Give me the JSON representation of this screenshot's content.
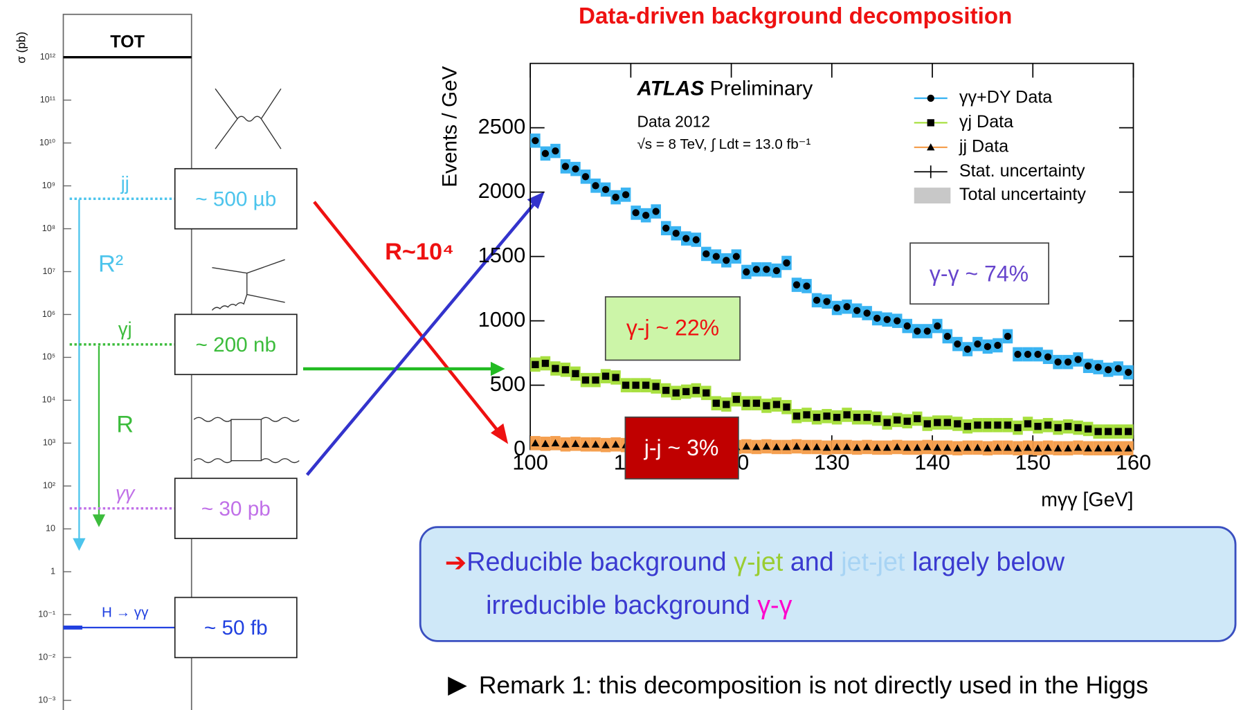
{
  "slide": {
    "title": "Data-driven background decomposition",
    "ratio_label": "R~10⁴",
    "callout": {
      "arrow": "➔",
      "line1": [
        {
          "text": "Reducible background ",
          "color": "#3a3ad0"
        },
        {
          "text": "γ-jet",
          "color": "#9acd32"
        },
        {
          "text": " and ",
          "color": "#3a3ad0"
        },
        {
          "text": "jet-jet",
          "color": "#a8d4f4"
        },
        {
          "text": " largely below",
          "color": "#3a3ad0"
        }
      ],
      "line2": [
        {
          "text": "irreducible background ",
          "color": "#3a3ad0"
        },
        {
          "text": "γ-γ",
          "color": "#ff00cc"
        }
      ]
    },
    "remark": "Remark 1: this decomposition is not directly used in the Higgs"
  },
  "chart_data": [
    {
      "type": "levels",
      "ylabel": "σ (pb)",
      "log_y": true,
      "ylim": [
        0.0006,
        10000000000000
      ],
      "yticks": [
        {
          "value": 1000000000000,
          "label": "10¹²"
        },
        {
          "value": 100000000000,
          "label": "10¹¹"
        },
        {
          "value": 10000000000,
          "label": "10¹⁰"
        },
        {
          "value": 1000000000,
          "label": "10⁹"
        },
        {
          "value": 100000000,
          "label": "10⁸"
        },
        {
          "value": 10000000,
          "label": "10⁷"
        },
        {
          "value": 1000000,
          "label": "10⁶"
        },
        {
          "value": 100000,
          "label": "10⁵"
        },
        {
          "value": 10000,
          "label": "10⁴"
        },
        {
          "value": 1000,
          "label": "10³"
        },
        {
          "value": 100,
          "label": "10²"
        },
        10,
        1,
        {
          "value": 0.1,
          "label": "10⁻¹"
        },
        {
          "value": 0.01,
          "label": "10⁻²"
        },
        {
          "value": 0.001,
          "label": "10⁻³"
        }
      ],
      "series": [
        {
          "name": "TOT",
          "color": "#000000",
          "values": [
            1000000000000
          ]
        },
        {
          "name": "jj",
          "color": "#4cc4ec",
          "values": [
            500000000
          ],
          "value_labels": [
            "~ 500 µb"
          ]
        },
        {
          "name": "γj",
          "color": "#3cbc3c",
          "values": [
            200000
          ],
          "value_labels": [
            "~ 200 nb"
          ]
        },
        {
          "name": "γγ",
          "color": "#c070e8",
          "values": [
            30
          ],
          "value_labels": [
            "~ 30 pb"
          ]
        },
        {
          "name": "H → γγ",
          "color": "#2040e0",
          "values": [
            0.05
          ],
          "value_labels": [
            "~ 50 fb"
          ]
        }
      ],
      "annotations": [
        "R²",
        "R"
      ]
    },
    {
      "type": "scatter",
      "xlabel": "mγγ [GeV]",
      "ylabel": "Events / GeV",
      "xlim": [
        100,
        160
      ],
      "xticks": [
        100,
        110,
        120,
        130,
        140,
        150,
        160
      ],
      "ylim": [
        0,
        3000
      ],
      "yticks": [
        0,
        500,
        1000,
        1500,
        2000,
        2500
      ],
      "x": [
        100.5,
        101.5,
        102.5,
        103.5,
        104.5,
        105.5,
        106.5,
        107.5,
        108.5,
        109.5,
        110.5,
        111.5,
        112.5,
        113.5,
        114.5,
        115.5,
        116.5,
        117.5,
        118.5,
        119.5,
        120.5,
        121.5,
        122.5,
        123.5,
        124.5,
        125.5,
        126.5,
        127.5,
        128.5,
        129.5,
        130.5,
        131.5,
        132.5,
        133.5,
        134.5,
        135.5,
        136.5,
        137.5,
        138.5,
        139.5,
        140.5,
        141.5,
        142.5,
        143.5,
        144.5,
        145.5,
        146.5,
        147.5,
        148.5,
        149.5,
        150.5,
        151.5,
        152.5,
        153.5,
        154.5,
        155.5,
        156.5,
        157.5,
        158.5,
        159.5
      ],
      "series": [
        {
          "name": "γγ+DY Data",
          "color": "#000000",
          "band_color": "#3ab4f2",
          "marker": "circle",
          "values": [
            2400,
            2300,
            2320,
            2200,
            2180,
            2120,
            2050,
            2020,
            1960,
            1980,
            1840,
            1820,
            1850,
            1720,
            1680,
            1640,
            1630,
            1520,
            1500,
            1470,
            1500,
            1380,
            1400,
            1400,
            1390,
            1450,
            1280,
            1270,
            1160,
            1150,
            1100,
            1110,
            1080,
            1060,
            1020,
            1010,
            1000,
            960,
            920,
            920,
            960,
            880,
            820,
            780,
            820,
            800,
            810,
            880,
            740,
            740,
            740,
            720,
            680,
            680,
            700,
            650,
            640,
            620,
            630,
            600
          ]
        },
        {
          "name": "γj Data",
          "color": "#000000",
          "band_color": "#a8e040",
          "marker": "square",
          "values": [
            660,
            670,
            630,
            620,
            590,
            540,
            540,
            570,
            560,
            500,
            500,
            500,
            490,
            460,
            440,
            450,
            460,
            440,
            360,
            350,
            390,
            360,
            360,
            340,
            350,
            330,
            260,
            270,
            250,
            260,
            250,
            270,
            250,
            250,
            240,
            210,
            230,
            220,
            240,
            200,
            210,
            210,
            200,
            180,
            190,
            190,
            190,
            190,
            170,
            200,
            180,
            190,
            170,
            180,
            170,
            160,
            140,
            140,
            140,
            140
          ]
        },
        {
          "name": "jj Data",
          "color": "#000000",
          "band_color": "#f5a050",
          "marker": "triangle",
          "values": [
            50,
            45,
            50,
            40,
            45,
            40,
            40,
            35,
            40,
            35,
            30,
            35,
            30,
            30,
            25,
            30,
            25,
            30,
            25,
            25,
            20,
            25,
            20,
            25,
            20,
            20,
            25,
            20,
            20,
            15,
            20,
            20,
            15,
            20,
            15,
            15,
            20,
            15,
            15,
            20,
            15,
            15,
            10,
            15,
            15,
            10,
            15,
            15,
            10,
            15,
            10,
            15,
            10,
            10,
            15,
            10,
            10,
            10,
            10,
            10
          ]
        }
      ],
      "legend_extra": [
        "Stat. uncertainty",
        "Total uncertainty"
      ],
      "annotations": {
        "experiment": "ATLAS",
        "status": "Preliminary",
        "dataset": "Data 2012",
        "conditions": "√s = 8 TeV, ∫ Ldt = 13.0 fb⁻¹"
      },
      "fractions": [
        "γ-γ ~ 74%",
        "γ-j ~ 22%",
        "j-j ~ 3%"
      ]
    }
  ]
}
